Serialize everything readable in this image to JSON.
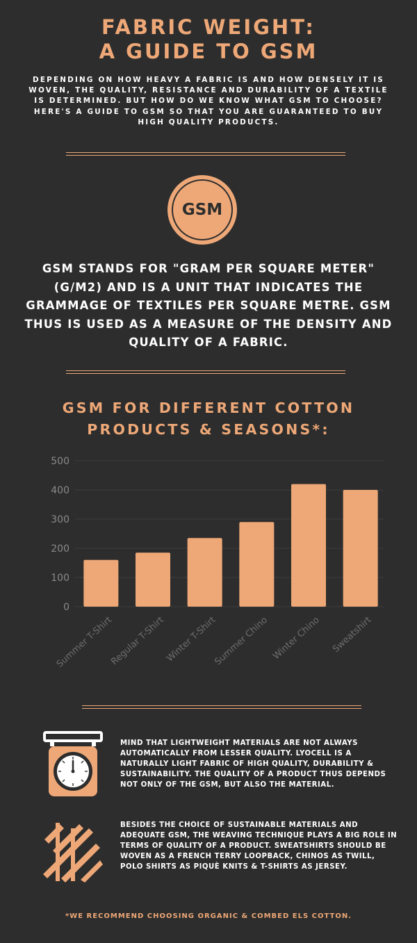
{
  "title": {
    "line1": "FABRIC WEIGHT:",
    "line2": "A GUIDE TO GSM"
  },
  "intro": "DEPENDING ON HOW HEAVY A FABRIC IS AND HOW DENSELY IT IS WOVEN, THE QUALITY, RESISTANCE AND DURABILITY OF A TEXTILE IS DETERMINED. BUT HOW DO WE KNOW WHAT GSM TO CHOOSE? HERE'S A GUIDE TO GSM SO THAT YOU ARE GUARANTEED TO BUY HIGH QUALITY PRODUCTS.",
  "badge": {
    "label": "GSM"
  },
  "definition": "GSM STANDS FOR \"GRAM PER SQUARE METER\" (G/M2) AND IS A UNIT THAT INDICATES THE GRAMMAGE OF TEXTILES PER SQUARE METRE. GSM THUS IS USED AS A MEASURE OF THE DENSITY AND QUALITY OF A FABRIC.",
  "chart_title": {
    "line1": "GSM FOR DIFFERENT COTTON",
    "line2": "PRODUCTS & SEASONS*:"
  },
  "chart_data": {
    "type": "bar",
    "title": "GSM FOR DIFFERENT COTTON PRODUCTS & SEASONS*:",
    "categories": [
      "Summer T-Shirt",
      "Regular T-Shirt",
      "Winter T-Shirt",
      "Summer Chino",
      "Winter Chino",
      "Sweatshirt"
    ],
    "values": [
      160,
      185,
      235,
      290,
      420,
      400
    ],
    "ylim": [
      0,
      500
    ],
    "yticks": [
      0,
      100,
      200,
      300,
      400,
      500
    ],
    "grid": true,
    "bar_color": "#eea877"
  },
  "notes": {
    "note1": "MIND THAT LIGHTWEIGHT MATERIALS ARE NOT ALWAYS AUTOMATICALLY FROM LESSER QUALITY. LYOCELL IS A NATURALLY LIGHT FABRIC OF HIGH QUALITY, DURABILITY & SUSTAINABILITY. THE QUALITY OF A PRODUCT THUS DEPENDS NOT ONLY OF THE GSM, BUT ALSO THE MATERIAL.",
    "note2": "BESIDES THE CHOICE OF SUSTAINABLE MATERIALS AND ADEQUATE GSM, THE WEAVING TECHNIQUE PLAYS A BIG ROLE IN TERMS OF QUALITY OF A PRODUCT. SWEATSHIRTS SHOULD BE WOVEN AS A FRENCH TERRY LOOPBACK, CHINOS AS TWILL, POLO SHIRTS AS PIQUÈ KNITS & T-SHIRTS AS JERSEY."
  },
  "icons": {
    "scale": "weighing-scale-icon",
    "weave": "weave-icon"
  },
  "footnote": "*WE RECOMMEND CHOOSING ORGANIC & COMBED ELS COTTON.",
  "colors": {
    "background": "#2d2d2d",
    "accent": "#eea877",
    "text": "#ffffff"
  }
}
